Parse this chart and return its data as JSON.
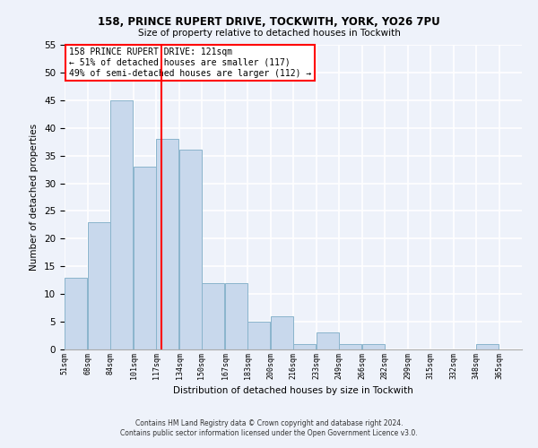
{
  "title1": "158, PRINCE RUPERT DRIVE, TOCKWITH, YORK, YO26 7PU",
  "title2": "Size of property relative to detached houses in Tockwith",
  "xlabel": "Distribution of detached houses by size in Tockwith",
  "ylabel": "Number of detached properties",
  "footnote1": "Contains HM Land Registry data © Crown copyright and database right 2024.",
  "footnote2": "Contains public sector information licensed under the Open Government Licence v3.0.",
  "bar_edges": [
    51,
    68,
    84,
    101,
    117,
    134,
    150,
    167,
    183,
    200,
    216,
    233,
    249,
    266,
    282,
    299,
    315,
    332,
    348,
    365,
    381
  ],
  "bar_heights": [
    13,
    23,
    45,
    33,
    38,
    36,
    12,
    12,
    5,
    6,
    1,
    3,
    1,
    1,
    0,
    0,
    0,
    0,
    1,
    0
  ],
  "bar_color": "#c8d8ec",
  "bar_edgecolor": "#8ab4cc",
  "vline_x": 121,
  "vline_color": "red",
  "annotation_text": "158 PRINCE RUPERT DRIVE: 121sqm\n← 51% of detached houses are smaller (117)\n49% of semi-detached houses are larger (112) →",
  "annotation_box_color": "white",
  "annotation_box_edgecolor": "red",
  "ylim": [
    0,
    55
  ],
  "yticks": [
    0,
    5,
    10,
    15,
    20,
    25,
    30,
    35,
    40,
    45,
    50,
    55
  ],
  "bg_color": "#eef2fa",
  "grid_color": "white"
}
